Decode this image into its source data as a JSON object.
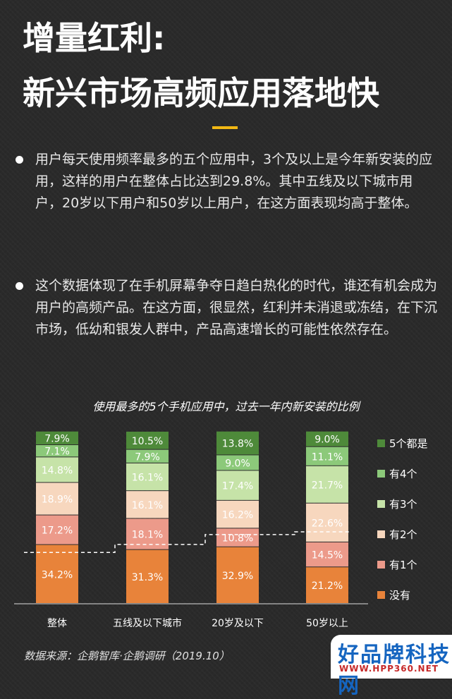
{
  "header": {
    "title_line1": "增量红利:",
    "title_line2": "新兴市场高频应用落地快",
    "accent_color": "#f2b814"
  },
  "bullets": [
    {
      "text": "用户每天使用频率最多的五个应用中，3个及以上是今年新安装的应用，这样的用户在整体占比达到29.8%。其中五线及以下城市用户，20岁以下用户和50岁以上用户，在这方面表现均高于整体。"
    },
    {
      "text": "这个数据体现了在手机屏幕争夺日趋白热化的时代，谁还有机会成为用户的高频产品。在这方面，很显然，红利并未消退或冻结，在下沉市场，低幼和银发人群中，产品高速增长的可能性依然存在。"
    }
  ],
  "chart_data": {
    "type": "bar",
    "stacked": true,
    "normalized_100": true,
    "title": "使用最多的5个手机应用中，过去一年内新安装的比例",
    "categories": [
      "整体",
      "五线及以下城市",
      "20岁及以下",
      "50岁以上"
    ],
    "series": [
      {
        "name": "没有",
        "color": "#e8833a",
        "text_color": "#ffffff",
        "values": [
          34.2,
          31.3,
          32.9,
          21.2
        ]
      },
      {
        "name": "有1个",
        "color": "#ec9a8a",
        "text_color": "#ffffff",
        "values": [
          17.2,
          18.1,
          10.8,
          14.5
        ]
      },
      {
        "name": "有2个",
        "color": "#f7d7be",
        "text_color": "#ffffff",
        "values": [
          18.9,
          16.1,
          16.2,
          22.6
        ]
      },
      {
        "name": "有3个",
        "color": "#c6e3a8",
        "text_color": "#ffffff",
        "values": [
          14.8,
          16.1,
          17.4,
          21.7
        ]
      },
      {
        "name": "有4个",
        "color": "#8cc97a",
        "text_color": "#ffffff",
        "values": [
          7.1,
          7.9,
          9.0,
          11.1
        ]
      },
      {
        "name": "5个都是",
        "color": "#4e8a3a",
        "text_color": "#ffffff",
        "values": [
          7.9,
          10.5,
          13.8,
          9.0
        ]
      }
    ],
    "reference_line": {
      "description": "dashed white line at the 3-or-more threshold",
      "values": [
        29.8,
        34.5,
        40.2,
        41.8
      ]
    },
    "legend_position": "right",
    "grid": false
  },
  "footer": {
    "source": "数据来源：企鹅智库·企鹅调研（2019.10）"
  },
  "watermark": {
    "brand": "好品牌科技网",
    "url": "WWW.HPP360.NET"
  }
}
